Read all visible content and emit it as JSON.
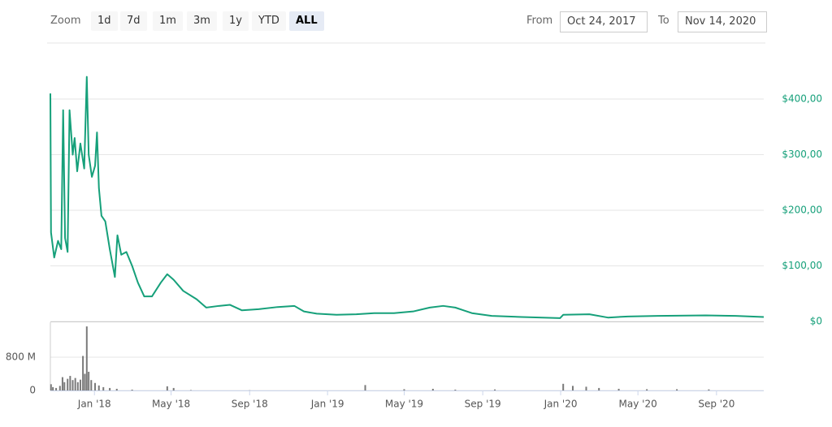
{
  "controls": {
    "zoom_label": "Zoom",
    "zoom": [
      "1d",
      "7d",
      "1m",
      "3m",
      "1y",
      "YTD",
      "ALL"
    ],
    "active": "ALL",
    "from_label": "From",
    "from": "Oct 24, 2017",
    "to_label": "To",
    "to": "Nov 14, 2020"
  },
  "chart_data": {
    "type": "line",
    "color": "#16a07a",
    "x": [
      "2017-10-24",
      "2017-10-25",
      "2017-10-30",
      "2017-11-05",
      "2017-11-10",
      "2017-11-13",
      "2017-11-16",
      "2017-11-20",
      "2017-11-23",
      "2017-11-28",
      "2017-12-01",
      "2017-12-05",
      "2017-12-10",
      "2017-12-16",
      "2017-12-20",
      "2017-12-23",
      "2017-12-28",
      "2018-01-02",
      "2018-01-05",
      "2018-01-08",
      "2018-01-12",
      "2018-01-18",
      "2018-01-25",
      "2018-02-02",
      "2018-02-06",
      "2018-02-12",
      "2018-02-20",
      "2018-03-01",
      "2018-03-10",
      "2018-03-20",
      "2018-04-01",
      "2018-04-15",
      "2018-04-25",
      "2018-05-05",
      "2018-05-20",
      "2018-06-10",
      "2018-06-25",
      "2018-07-15",
      "2018-08-01",
      "2018-08-20",
      "2018-09-15",
      "2018-10-15",
      "2018-11-10",
      "2018-11-25",
      "2018-12-15",
      "2019-01-15",
      "2019-02-15",
      "2019-03-15",
      "2019-04-15",
      "2019-05-15",
      "2019-06-10",
      "2019-07-01",
      "2019-07-20",
      "2019-08-15",
      "2019-09-15",
      "2019-11-01",
      "2019-12-31",
      "2020-01-05",
      "2020-02-15",
      "2020-03-15",
      "2020-04-15",
      "2020-06-01",
      "2020-08-15",
      "2020-10-01",
      "2020-11-14"
    ],
    "values": [
      410,
      160,
      115,
      145,
      130,
      380,
      150,
      125,
      380,
      300,
      330,
      270,
      320,
      275,
      440,
      300,
      260,
      280,
      340,
      240,
      190,
      180,
      130,
      80,
      155,
      120,
      125,
      100,
      70,
      45,
      45,
      70,
      85,
      75,
      55,
      40,
      25,
      28,
      30,
      20,
      22,
      26,
      28,
      18,
      14,
      12,
      13,
      15,
      15,
      18,
      25,
      28,
      25,
      15,
      10,
      8,
      6,
      12,
      13,
      7,
      9,
      10,
      11,
      10,
      8
    ],
    "xlim": [
      "2017-10-24",
      "2020-11-14"
    ],
    "xticks": [
      {
        "value": "2018-01-01",
        "label": "Jan '18"
      },
      {
        "value": "2018-05-01",
        "label": "May '18"
      },
      {
        "value": "2018-09-01",
        "label": "Sep '18"
      },
      {
        "value": "2019-01-01",
        "label": "Jan '19"
      },
      {
        "value": "2019-05-01",
        "label": "May '19"
      },
      {
        "value": "2019-09-01",
        "label": "Sep '19"
      },
      {
        "value": "2020-01-01",
        "label": "Jan '20"
      },
      {
        "value": "2020-05-01",
        "label": "May '20"
      },
      {
        "value": "2020-09-01",
        "label": "Sep '20"
      }
    ],
    "ylim": [
      0,
      500
    ],
    "yticks": [
      {
        "value": 0,
        "label": "$0"
      },
      {
        "value": 100,
        "label": "$100,00"
      },
      {
        "value": 200,
        "label": "$200,00"
      },
      {
        "value": 300,
        "label": "$300,00"
      },
      {
        "value": 400,
        "label": "$400,00"
      }
    ],
    "grid": true,
    "volume": {
      "color": "#7a7a7a",
      "x": [
        "2017-10-25",
        "2017-10-28",
        "2017-11-02",
        "2017-11-08",
        "2017-11-12",
        "2017-11-15",
        "2017-11-20",
        "2017-11-24",
        "2017-11-28",
        "2017-12-02",
        "2017-12-06",
        "2017-12-10",
        "2017-12-14",
        "2017-12-17",
        "2017-12-20",
        "2017-12-23",
        "2017-12-27",
        "2018-01-02",
        "2018-01-08",
        "2018-01-15",
        "2018-01-25",
        "2018-02-05",
        "2018-03-01",
        "2018-04-25",
        "2018-05-05",
        "2018-06-01",
        "2018-09-01",
        "2019-03-01",
        "2019-05-01",
        "2019-06-15",
        "2019-07-20",
        "2019-09-20",
        "2020-01-05",
        "2020-01-20",
        "2020-02-10",
        "2020-03-01",
        "2020-04-01",
        "2020-05-15",
        "2020-07-01",
        "2020-08-20"
      ],
      "values": [
        150000000,
        80000000,
        60000000,
        110000000,
        320000000,
        200000000,
        280000000,
        350000000,
        250000000,
        300000000,
        200000000,
        260000000,
        830000000,
        400000000,
        1540000000,
        450000000,
        250000000,
        180000000,
        120000000,
        80000000,
        60000000,
        40000000,
        20000000,
        100000000,
        60000000,
        10000000,
        5000000,
        130000000,
        30000000,
        40000000,
        20000000,
        25000000,
        160000000,
        110000000,
        90000000,
        60000000,
        40000000,
        30000000,
        30000000,
        25000000
      ],
      "ylim": [
        0,
        1640000000
      ],
      "yticks": [
        0,
        {
          "value": 800000000,
          "label": "800 M"
        }
      ]
    }
  }
}
